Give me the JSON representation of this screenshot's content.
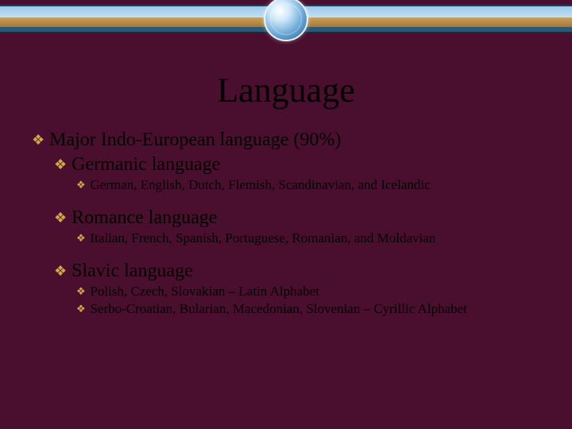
{
  "title": "Language",
  "bullet_glyph": "❖",
  "bullet_color": "#d4a84a",
  "background_color": "#4a0e2e",
  "lines": {
    "l1_major": "Major Indo-European language (90%)",
    "l2_germanic": "Germanic language",
    "l3_germanic_detail": "German, English, Dutch, Flemish, Scandinavian, and Icelandic",
    "l2_romance": "Romance language",
    "l3_romance_detail": "Italian, French, Spanish, Portuguese, Romanian, and Moldavian",
    "l2_slavic": "Slavic language",
    "l3_slavic_a": "Polish, Czech, Slovakian – Latin Alphabet",
    "l3_slavic_b": "Serbo-Croatian, Bularian, Macedonian, Slovenian – Cyrillic Alphabet"
  },
  "font_sizes": {
    "title": 44,
    "lvl1": 24,
    "lvl2": 24,
    "lvl3": 17
  }
}
